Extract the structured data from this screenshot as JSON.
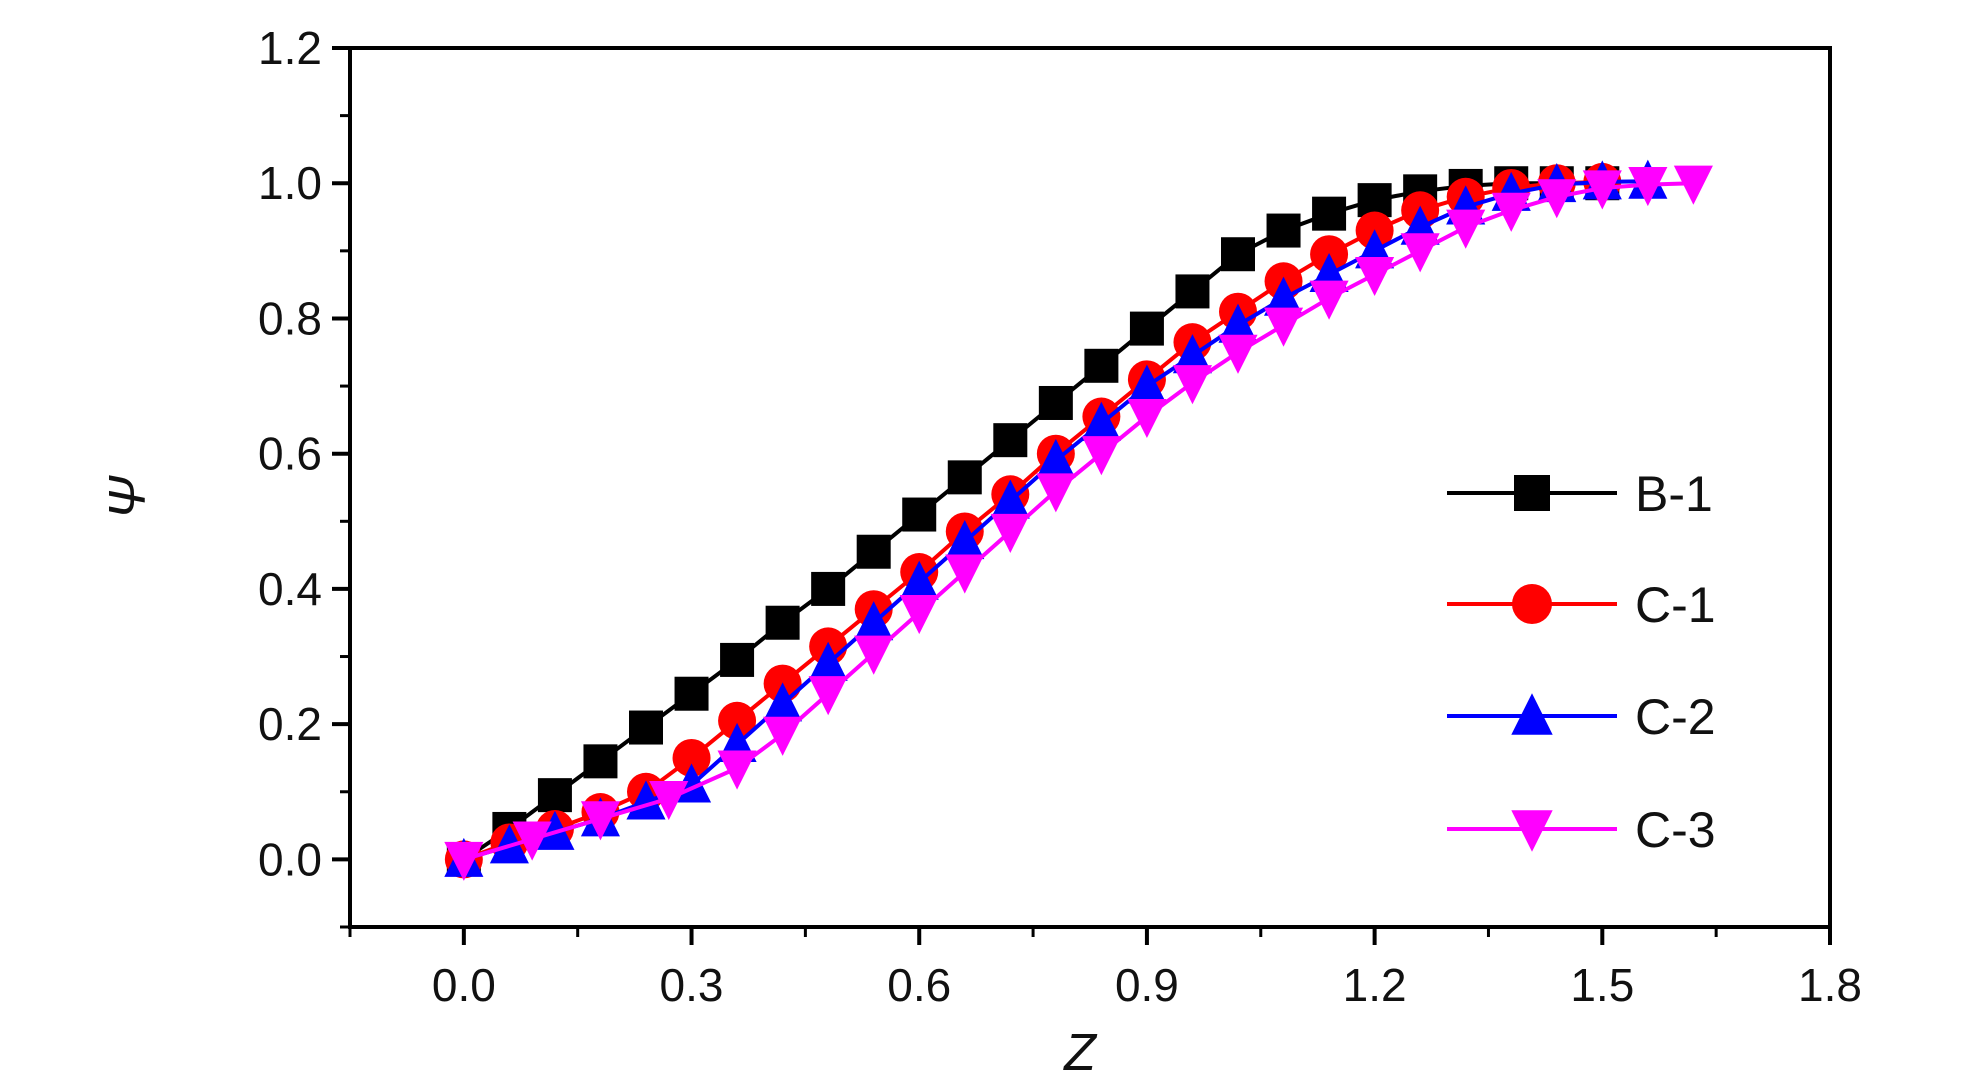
{
  "chart_data": {
    "type": "line",
    "xlabel": "Z",
    "ylabel": "Ψ",
    "xlim": [
      -0.15,
      1.8
    ],
    "ylim": [
      -0.1,
      1.2
    ],
    "x_ticks": [
      "0.0",
      "0.3",
      "0.6",
      "0.9",
      "1.2",
      "1.5",
      "1.8"
    ],
    "x_tick_values": [
      0.0,
      0.3,
      0.6,
      0.9,
      1.2,
      1.5,
      1.8
    ],
    "y_ticks": [
      "0.0",
      "0.2",
      "0.4",
      "0.6",
      "0.8",
      "1.0",
      "1.2"
    ],
    "y_tick_values": [
      0.0,
      0.2,
      0.4,
      0.6,
      0.8,
      1.0,
      1.2
    ],
    "grid": false,
    "legend_position": "right",
    "series": [
      {
        "name": "B-1",
        "color": "#000000",
        "marker": "square",
        "x": [
          0.0,
          0.06,
          0.12,
          0.18,
          0.24,
          0.3,
          0.36,
          0.42,
          0.48,
          0.54,
          0.6,
          0.66,
          0.72,
          0.78,
          0.84,
          0.9,
          0.96,
          1.02,
          1.08,
          1.14,
          1.2,
          1.26,
          1.32,
          1.38,
          1.44,
          1.5
        ],
        "y": [
          0.0,
          0.045,
          0.095,
          0.145,
          0.195,
          0.245,
          0.295,
          0.35,
          0.4,
          0.455,
          0.51,
          0.565,
          0.62,
          0.675,
          0.73,
          0.785,
          0.84,
          0.895,
          0.93,
          0.955,
          0.975,
          0.988,
          0.996,
          1.0,
          1.0,
          1.0
        ]
      },
      {
        "name": "C-1",
        "color": "#ff0000",
        "marker": "circle",
        "x": [
          0.0,
          0.06,
          0.12,
          0.18,
          0.24,
          0.3,
          0.36,
          0.42,
          0.48,
          0.54,
          0.6,
          0.66,
          0.72,
          0.78,
          0.84,
          0.9,
          0.96,
          1.02,
          1.08,
          1.14,
          1.2,
          1.26,
          1.32,
          1.38,
          1.44,
          1.5
        ],
        "y": [
          0.0,
          0.025,
          0.045,
          0.07,
          0.1,
          0.15,
          0.205,
          0.26,
          0.315,
          0.37,
          0.425,
          0.485,
          0.54,
          0.6,
          0.655,
          0.71,
          0.765,
          0.81,
          0.855,
          0.895,
          0.93,
          0.96,
          0.98,
          0.993,
          1.0,
          1.002
        ]
      },
      {
        "name": "C-2",
        "color": "#0000ff",
        "marker": "triangle-up",
        "x": [
          0.0,
          0.06,
          0.12,
          0.18,
          0.24,
          0.3,
          0.36,
          0.42,
          0.48,
          0.54,
          0.6,
          0.66,
          0.72,
          0.78,
          0.84,
          0.9,
          0.96,
          1.02,
          1.08,
          1.14,
          1.2,
          1.26,
          1.32,
          1.38,
          1.44,
          1.5,
          1.56
        ],
        "y": [
          0.0,
          0.02,
          0.04,
          0.06,
          0.085,
          0.11,
          0.17,
          0.23,
          0.29,
          0.35,
          0.41,
          0.47,
          0.53,
          0.59,
          0.645,
          0.7,
          0.745,
          0.79,
          0.83,
          0.865,
          0.9,
          0.935,
          0.965,
          0.985,
          0.998,
          1.002,
          1.003
        ]
      },
      {
        "name": "C-3",
        "color": "#ff00ff",
        "marker": "triangle-down",
        "x": [
          0.0,
          0.09,
          0.18,
          0.27,
          0.36,
          0.42,
          0.48,
          0.54,
          0.6,
          0.66,
          0.72,
          0.78,
          0.84,
          0.9,
          0.96,
          1.02,
          1.08,
          1.14,
          1.2,
          1.26,
          1.32,
          1.38,
          1.44,
          1.5,
          1.56,
          1.62
        ],
        "y": [
          0.0,
          0.03,
          0.06,
          0.09,
          0.135,
          0.185,
          0.245,
          0.305,
          0.365,
          0.425,
          0.485,
          0.545,
          0.6,
          0.655,
          0.705,
          0.75,
          0.79,
          0.83,
          0.865,
          0.9,
          0.935,
          0.96,
          0.98,
          0.993,
          0.998,
          1.0
        ]
      }
    ]
  }
}
